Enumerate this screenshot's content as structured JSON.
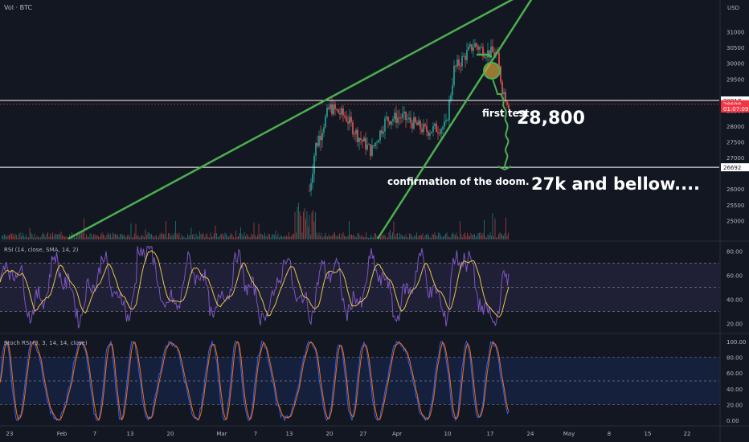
{
  "header": {
    "title": "Vol · BTC",
    "currency": "USD"
  },
  "chart_data": [
    {
      "type": "candlestick",
      "pair": "BTC",
      "y_ticks": [
        "31000",
        "30500",
        "30000",
        "29500",
        "28500",
        "28000",
        "27500",
        "27000",
        "26000",
        "25500",
        "25000"
      ],
      "ylim": [
        24600,
        31500
      ],
      "price_labels": [
        {
          "id": "pl1",
          "text": "28817",
          "value": 28817,
          "color": "#ffffff",
          "bg": "#ffffff",
          "fg": "#131722"
        },
        {
          "id": "pl2",
          "text": "28698",
          "value": 28698,
          "color": "#f23645",
          "bg": "#f23645",
          "fg": "#ffffff"
        },
        {
          "id": "pl3",
          "text": "01:07:09",
          "value": 28560,
          "color": "#f23645",
          "bg": "#f23645",
          "fg": "#ffffff"
        },
        {
          "id": "pl4",
          "text": "26692",
          "value": 26692,
          "color": "#ffffff",
          "bg": "#ffffff",
          "fg": "#131722"
        }
      ],
      "horizontal_levels": [
        28817,
        26692
      ],
      "annotations": [
        {
          "id": "a1",
          "text": "first test",
          "size": "small"
        },
        {
          "id": "a2",
          "text": "28,800",
          "size": "large"
        },
        {
          "id": "a3",
          "text": "confirmation of the doom.",
          "size": "small"
        },
        {
          "id": "a4",
          "text": "27k and bellow....",
          "size": "large"
        }
      ],
      "colors": {
        "up": "#26a69a",
        "down": "#ef5350",
        "trendline": "#4caf50",
        "background": "#131722"
      }
    },
    {
      "type": "line",
      "title": "RSI (14, close, SMA, 14, 2)",
      "y_ticks": [
        "80.00",
        "60.00",
        "40.00",
        "20.00"
      ],
      "ylim": [
        15,
        85
      ],
      "band": [
        30,
        70
      ],
      "mid": 50,
      "colors": {
        "rsi": "#7e57c2",
        "sma": "#e6c84a",
        "band": "#7e57c2"
      }
    },
    {
      "type": "line",
      "title": "Stoch RSI (3, 3, 14, 14, close)",
      "y_ticks": [
        "100.00",
        "80.00",
        "60.00",
        "40.00",
        "20.00",
        "0.00"
      ],
      "ylim": [
        -5,
        105
      ],
      "band": [
        20,
        80
      ],
      "mid": 50,
      "colors": {
        "k": "#2962ff",
        "d": "#ff6d00",
        "band": "#2962ff"
      }
    }
  ],
  "x_axis": {
    "labels": [
      "23",
      "Feb",
      "7",
      "13",
      "20",
      "Mar",
      "7",
      "13",
      "20",
      "27",
      "Apr",
      "10",
      "17",
      "24",
      "May",
      "8",
      "15",
      "22"
    ]
  }
}
